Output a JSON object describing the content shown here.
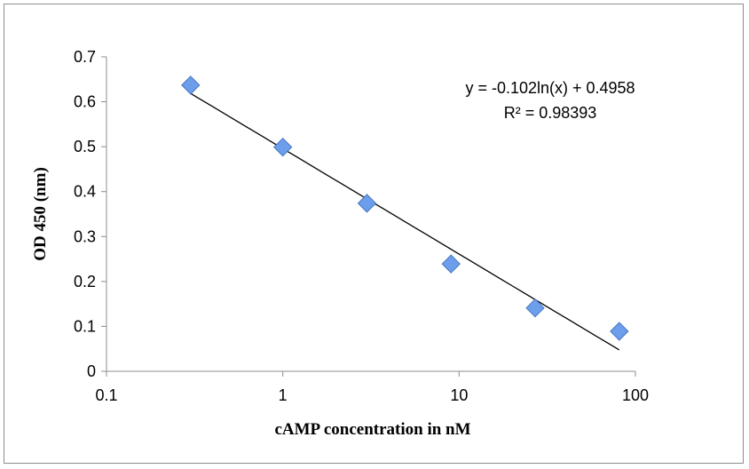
{
  "chart_data": {
    "type": "scatter",
    "title": "",
    "xlabel": "cAMP concentration in nM",
    "ylabel": "OD 450 (nm)",
    "x_scale": "log",
    "xlim": [
      0.1,
      100
    ],
    "ylim": [
      0,
      0.7
    ],
    "x_ticks": [
      "0.1",
      "1",
      "10",
      "100"
    ],
    "y_ticks": [
      "0",
      "0.1",
      "0.2",
      "0.3",
      "0.4",
      "0.5",
      "0.6",
      "0.7"
    ],
    "grid": false,
    "legend": "none",
    "marker": "diamond",
    "marker_color": "#6d9eeb",
    "series": [
      {
        "x": [
          0.3,
          1,
          3,
          9,
          27,
          81
        ],
        "y": [
          0.637,
          0.499,
          0.374,
          0.239,
          0.141,
          0.089
        ]
      }
    ],
    "trendline": {
      "type": "logarithmic",
      "slope": -0.102,
      "intercept": 0.4958,
      "x_range": [
        0.3,
        81
      ],
      "equation": "y = -0.102ln(x) + 0.4958",
      "r2_label": "R² = 0.98393"
    }
  }
}
